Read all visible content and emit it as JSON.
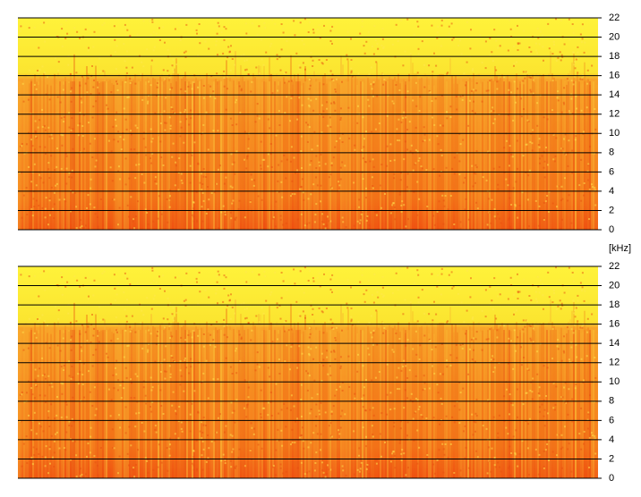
{
  "chart_data": [
    {
      "type": "spectrogram",
      "ylim": [
        0,
        22
      ],
      "yticks": [
        0,
        2,
        4,
        6,
        8,
        10,
        12,
        14,
        16,
        18,
        20,
        22
      ],
      "grid": true
    },
    {
      "type": "spectrogram",
      "ylim": [
        0,
        22
      ],
      "yticks": [
        0,
        2,
        4,
        6,
        8,
        10,
        12,
        14,
        16,
        18,
        20,
        22
      ],
      "grid": true
    }
  ],
  "unit_label": "[kHz]"
}
